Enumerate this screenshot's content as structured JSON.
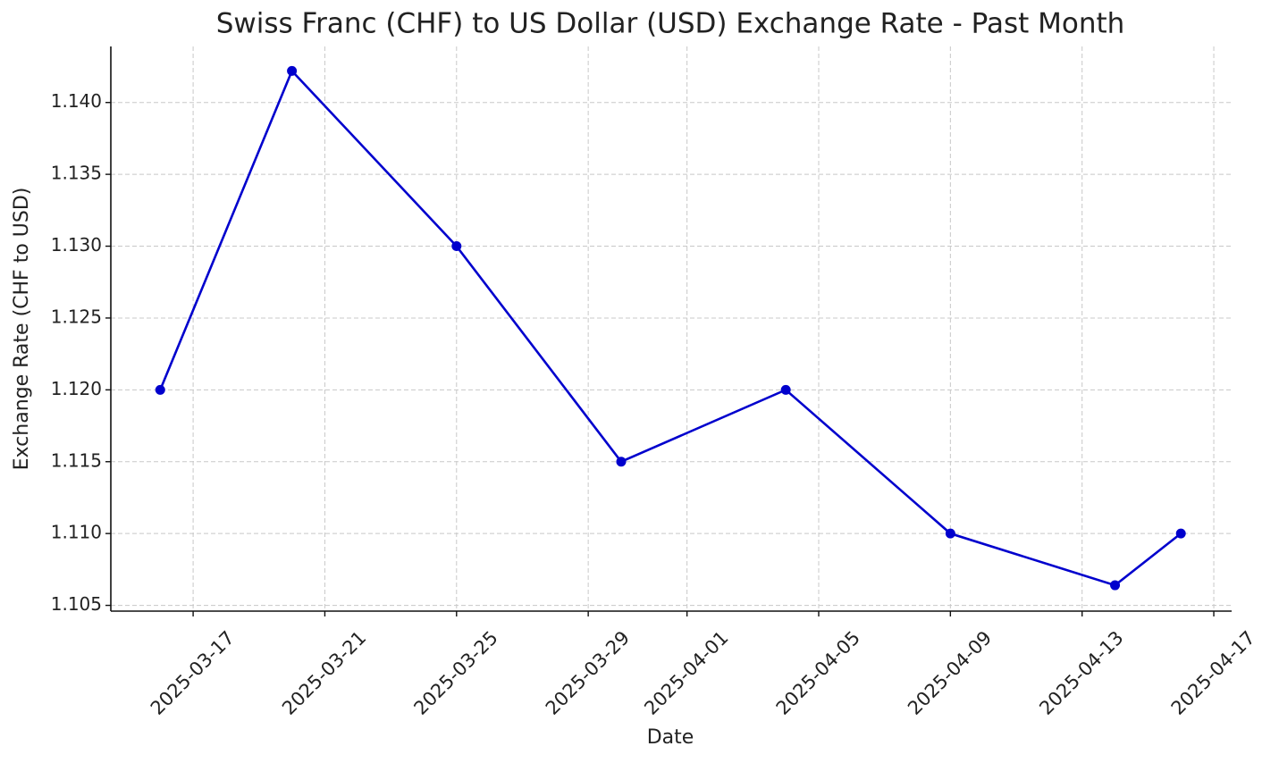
{
  "chart_data": {
    "type": "line",
    "title": "Swiss Franc (CHF) to US Dollar (USD) Exchange Rate - Past Month",
    "x_label": "Date",
    "y_label": "Exchange Rate (CHF to USD)",
    "x": [
      "2025-03-16",
      "2025-03-20",
      "2025-03-25",
      "2025-03-30",
      "2025-04-04",
      "2025-04-09",
      "2025-04-14",
      "2025-04-16"
    ],
    "series": [
      {
        "name": "CHF to USD",
        "color": "#0000cd",
        "values": [
          1.12,
          1.1422,
          1.13,
          1.115,
          1.12,
          1.11,
          1.1064,
          1.11
        ]
      }
    ],
    "xlim": [
      "2025-03-14T12:00",
      "2025-04-17T13:00"
    ],
    "xticks": [
      "2025-03-17",
      "2025-03-21",
      "2025-03-25",
      "2025-03-29",
      "2025-04-01",
      "2025-04-05",
      "2025-04-09",
      "2025-04-13",
      "2025-04-17"
    ],
    "ylim": [
      1.1046,
      1.1439
    ],
    "yticks": [
      1.105,
      {
        "value": 1.11,
        "label": "1.110"
      },
      1.115,
      {
        "value": 1.12,
        "label": "1.120"
      },
      1.125,
      {
        "value": 1.13,
        "label": "1.130"
      },
      1.135,
      {
        "value": 1.14,
        "label": "1.140"
      }
    ],
    "grid": true,
    "markers": true
  }
}
